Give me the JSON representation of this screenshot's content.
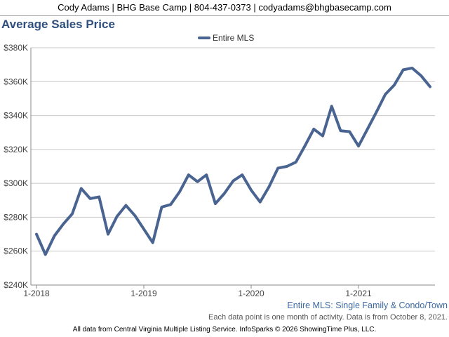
{
  "header": {
    "contact": "Cody Adams | BHG Base Camp | 804-437-0373 | codyadams@bhgbasecamp.com"
  },
  "chart_data": {
    "type": "line",
    "title": "Average Sales Price",
    "legend": {
      "position": "top",
      "entries": [
        "Entire MLS"
      ]
    },
    "x_tick_labels": [
      "1-2018",
      "1-2019",
      "1-2020",
      "1-2021"
    ],
    "y_tick_labels": [
      "$240K",
      "$260K",
      "$280K",
      "$300K",
      "$320K",
      "$340K",
      "$360K",
      "$380K"
    ],
    "ylim": [
      240000,
      380000
    ],
    "grid": true,
    "series": [
      {
        "name": "Entire MLS",
        "color": "#4a6491",
        "x": [
          "1-2018",
          "2-2018",
          "3-2018",
          "4-2018",
          "5-2018",
          "6-2018",
          "7-2018",
          "8-2018",
          "9-2018",
          "10-2018",
          "11-2018",
          "12-2018",
          "1-2019",
          "2-2019",
          "3-2019",
          "4-2019",
          "5-2019",
          "6-2019",
          "7-2019",
          "8-2019",
          "9-2019",
          "10-2019",
          "11-2019",
          "12-2019",
          "1-2020",
          "2-2020",
          "3-2020",
          "4-2020",
          "5-2020",
          "6-2020",
          "7-2020",
          "8-2020",
          "9-2020",
          "10-2020",
          "11-2020",
          "12-2020",
          "1-2021",
          "2-2021",
          "3-2021",
          "4-2021",
          "5-2021",
          "6-2021",
          "7-2021",
          "8-2021",
          "9-2021"
        ],
        "values": [
          270000,
          258000,
          269000,
          276000,
          282000,
          297000,
          291000,
          292000,
          270000,
          280500,
          287000,
          281000,
          273000,
          265000,
          286000,
          287500,
          295000,
          305000,
          301000,
          305000,
          288000,
          294000,
          301500,
          305000,
          296000,
          289000,
          298000,
          309000,
          310000,
          312500,
          322000,
          332000,
          328000,
          345500,
          331000,
          330500,
          322000,
          332000,
          342000,
          352500,
          358000,
          367000,
          368000,
          363500,
          357000
        ]
      }
    ]
  },
  "subtitle": "Entire MLS: Single Family & Condo/Town",
  "note": "Each data point is one month of activity. Data is from October 8, 2021.",
  "footer": "All data from Central Virginia Multiple Listing Service. InfoSparks © 2026 ShowingTime Plus, LLC."
}
